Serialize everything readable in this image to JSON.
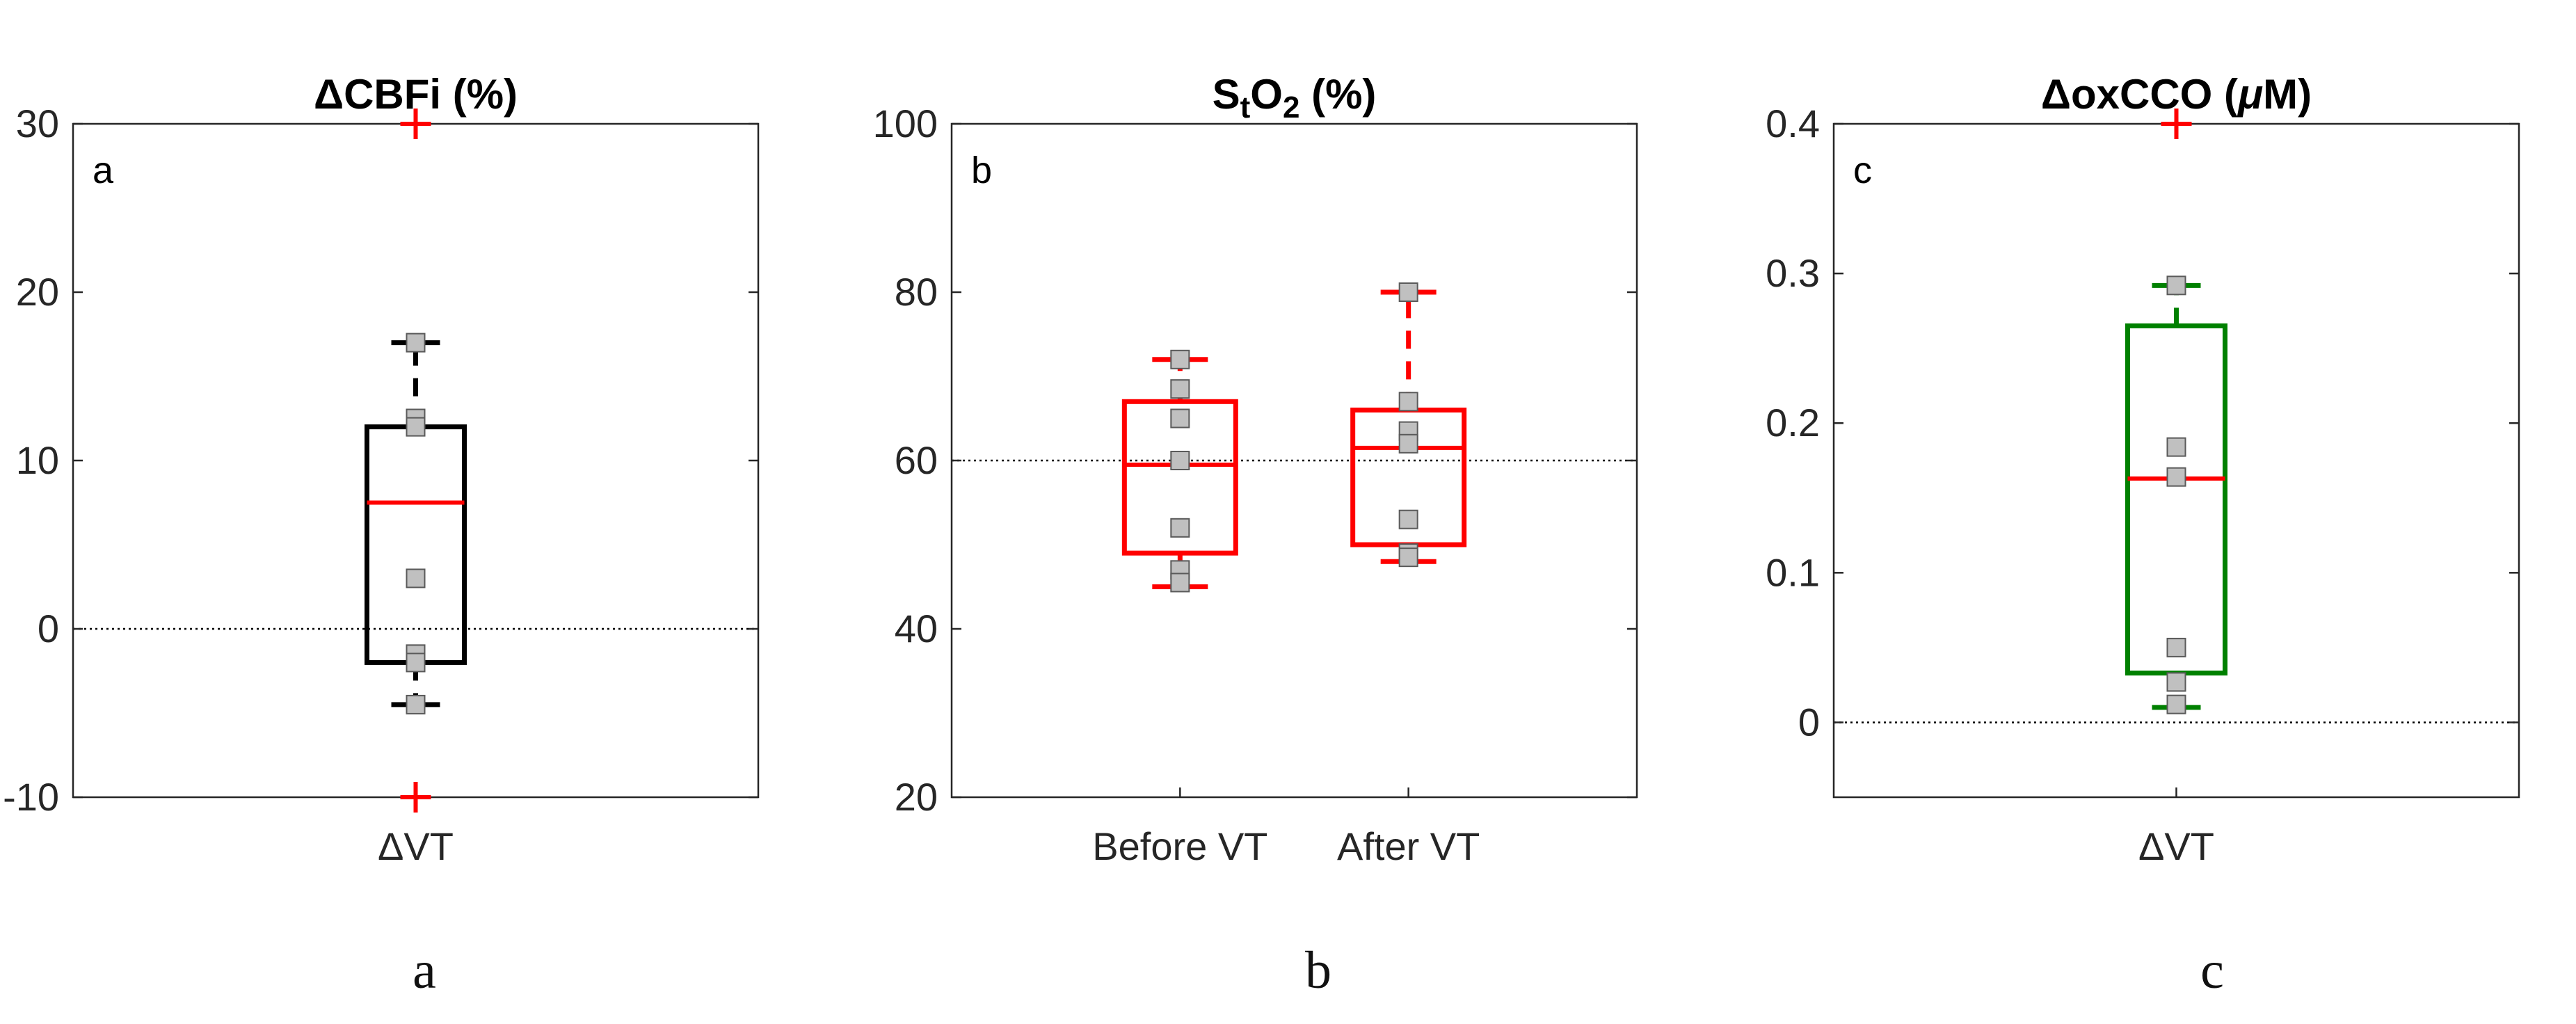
{
  "panels": [
    {
      "id": "a",
      "corner_label": "a",
      "caption": "a",
      "title_parts": [
        {
          "t": "ΔCBFi (%)"
        }
      ],
      "ylim": [
        -10,
        30
      ],
      "yticks": [
        -10,
        0,
        10,
        20,
        30
      ],
      "ytick_labels": [
        "-10",
        "0",
        "10",
        "20",
        "30"
      ],
      "reference_line": 0,
      "groups": [
        {
          "label": "ΔVT",
          "box_color": "#000000",
          "median_color": "#ff0000",
          "q1": -2,
          "median": 7.5,
          "q3": 12,
          "whisker_low": -4.5,
          "whisker_high": 17,
          "outliers": [
            -10,
            30
          ],
          "points": [
            17,
            12.5,
            12,
            3,
            -1.5,
            -2,
            -4.5
          ]
        }
      ]
    },
    {
      "id": "b",
      "corner_label": "b",
      "caption": "b",
      "title_parts": [
        {
          "t": "S"
        },
        {
          "t": "t",
          "sub": true
        },
        {
          "t": "O"
        },
        {
          "t": "2",
          "sub": true
        },
        {
          "t": " (%)"
        }
      ],
      "ylim": [
        20,
        100
      ],
      "yticks": [
        20,
        40,
        60,
        80,
        100
      ],
      "ytick_labels": [
        "20",
        "40",
        "60",
        "80",
        "100"
      ],
      "reference_line": 60,
      "groups": [
        {
          "label": "Before VT",
          "box_color": "#ff0000",
          "median_color": "#ff0000",
          "q1": 49,
          "median": 59.5,
          "q3": 67,
          "whisker_low": 45,
          "whisker_high": 72,
          "outliers": [],
          "points": [
            72,
            68.5,
            65,
            60,
            52,
            47,
            45.5
          ]
        },
        {
          "label": "After VT",
          "box_color": "#ff0000",
          "median_color": "#ff0000",
          "q1": 50,
          "median": 61.5,
          "q3": 66,
          "whisker_low": 48,
          "whisker_high": 80,
          "outliers": [],
          "points": [
            80,
            67,
            63.5,
            62,
            53,
            49,
            48.5
          ]
        }
      ]
    },
    {
      "id": "c",
      "corner_label": "c",
      "caption": "c",
      "title_parts": [
        {
          "t": "ΔoxCCO ("
        },
        {
          "t": "μ",
          "italic": true
        },
        {
          "t": "M)"
        }
      ],
      "ylim": [
        -0.05,
        0.4
      ],
      "yticks": [
        0,
        0.1,
        0.2,
        0.3,
        0.4
      ],
      "ytick_labels": [
        "0",
        "0.1",
        "0.2",
        "0.3",
        "0.4"
      ],
      "reference_line": 0,
      "groups": [
        {
          "label": "ΔVT",
          "box_color": "#008000",
          "median_color": "#ff0000",
          "q1": 0.033,
          "median": 0.163,
          "q3": 0.265,
          "whisker_low": 0.01,
          "whisker_high": 0.292,
          "outliers": [
            0.4
          ],
          "points": [
            0.292,
            0.184,
            0.164,
            0.05,
            0.027,
            0.012
          ]
        }
      ]
    }
  ],
  "chart_data": [
    {
      "type": "box",
      "title": "ΔCBFi (%)",
      "categories": [
        "ΔVT"
      ],
      "ylim": [
        -10,
        30
      ],
      "series": [
        {
          "name": "ΔVT",
          "q1": -2,
          "median": 7.5,
          "q3": 12,
          "whisker_low": -4.5,
          "whisker_high": 17,
          "outliers": [
            -10,
            30
          ],
          "points": [
            17,
            12.5,
            12,
            3,
            -1.5,
            -2,
            -4.5
          ]
        }
      ]
    },
    {
      "type": "box",
      "title": "StO2 (%)",
      "categories": [
        "Before VT",
        "After VT"
      ],
      "ylim": [
        20,
        100
      ],
      "series": [
        {
          "name": "Before VT",
          "q1": 49,
          "median": 59.5,
          "q3": 67,
          "whisker_low": 45,
          "whisker_high": 72,
          "outliers": [],
          "points": [
            72,
            68.5,
            65,
            60,
            52,
            47,
            45.5
          ]
        },
        {
          "name": "After VT",
          "q1": 50,
          "median": 61.5,
          "q3": 66,
          "whisker_low": 48,
          "whisker_high": 80,
          "outliers": [],
          "points": [
            80,
            67,
            63.5,
            62,
            53,
            49,
            48.5
          ]
        }
      ]
    },
    {
      "type": "box",
      "title": "ΔoxCCO (μM)",
      "categories": [
        "ΔVT"
      ],
      "ylim": [
        -0.05,
        0.4
      ],
      "series": [
        {
          "name": "ΔVT",
          "q1": 0.033,
          "median": 0.163,
          "q3": 0.265,
          "whisker_low": 0.01,
          "whisker_high": 0.292,
          "outliers": [
            0.4
          ],
          "points": [
            0.292,
            0.184,
            0.164,
            0.05,
            0.027,
            0.012
          ]
        }
      ]
    }
  ]
}
